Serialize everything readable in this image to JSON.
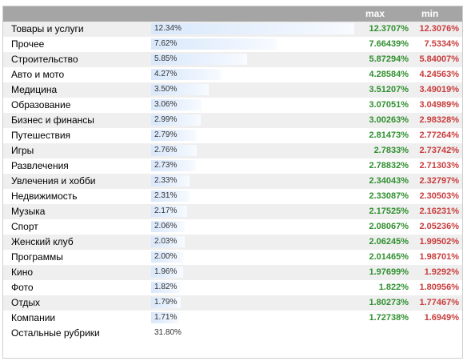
{
  "chart_data": {
    "type": "table",
    "columns": [
      "",
      "",
      "max",
      "min"
    ],
    "bar_max_percent": 12.34,
    "rows": [
      {
        "name": "Товары и услуги",
        "percent": 12.34,
        "percent_label": "12.34%",
        "max": "12.3707%",
        "min": "12.3076%"
      },
      {
        "name": "Прочее",
        "percent": 7.62,
        "percent_label": "7.62%",
        "max": "7.66439%",
        "min": "7.5334%"
      },
      {
        "name": "Строительство",
        "percent": 5.85,
        "percent_label": "5.85%",
        "max": "5.87294%",
        "min": "5.84007%"
      },
      {
        "name": "Авто и мото",
        "percent": 4.27,
        "percent_label": "4.27%",
        "max": "4.28584%",
        "min": "4.24563%"
      },
      {
        "name": "Медицина",
        "percent": 3.5,
        "percent_label": "3.50%",
        "max": "3.51207%",
        "min": "3.49019%"
      },
      {
        "name": "Образование",
        "percent": 3.06,
        "percent_label": "3.06%",
        "max": "3.07051%",
        "min": "3.04989%"
      },
      {
        "name": "Бизнес и финансы",
        "percent": 2.99,
        "percent_label": "2.99%",
        "max": "3.00263%",
        "min": "2.98328%"
      },
      {
        "name": "Путешествия",
        "percent": 2.79,
        "percent_label": "2.79%",
        "max": "2.81473%",
        "min": "2.77264%"
      },
      {
        "name": "Игры",
        "percent": 2.76,
        "percent_label": "2.76%",
        "max": "2.7833%",
        "min": "2.73742%"
      },
      {
        "name": "Развлечения",
        "percent": 2.73,
        "percent_label": "2.73%",
        "max": "2.78832%",
        "min": "2.71303%"
      },
      {
        "name": "Увлечения и хобби",
        "percent": 2.33,
        "percent_label": "2.33%",
        "max": "2.34043%",
        "min": "2.32797%"
      },
      {
        "name": "Недвижимость",
        "percent": 2.31,
        "percent_label": "2.31%",
        "max": "2.33087%",
        "min": "2.30503%"
      },
      {
        "name": "Музыка",
        "percent": 2.17,
        "percent_label": "2.17%",
        "max": "2.17525%",
        "min": "2.16231%"
      },
      {
        "name": "Спорт",
        "percent": 2.06,
        "percent_label": "2.06%",
        "max": "2.08067%",
        "min": "2.05236%"
      },
      {
        "name": "Женский клуб",
        "percent": 2.03,
        "percent_label": "2.03%",
        "max": "2.06245%",
        "min": "1.99502%"
      },
      {
        "name": "Программы",
        "percent": 2.0,
        "percent_label": "2.00%",
        "max": "2.01465%",
        "min": "1.98701%"
      },
      {
        "name": "Кино",
        "percent": 1.96,
        "percent_label": "1.96%",
        "max": "1.97699%",
        "min": "1.9292%"
      },
      {
        "name": "Фото",
        "percent": 1.82,
        "percent_label": "1.82%",
        "max": "1.822%",
        "min": "1.80956%"
      },
      {
        "name": "Отдых",
        "percent": 1.79,
        "percent_label": "1.79%",
        "max": "1.80273%",
        "min": "1.77467%"
      },
      {
        "name": "Компании",
        "percent": 1.71,
        "percent_label": "1.71%",
        "max": "1.72738%",
        "min": "1.6949%"
      }
    ],
    "rest": {
      "name": "Остальные рубрики",
      "percent": 31.8,
      "percent_label": "31.80%"
    }
  },
  "colors": {
    "header_bg": "#a5a5a5",
    "alt_row_bg": "#efefef",
    "bar": "#d9e8fb",
    "max_text": "#2f8f2f",
    "min_text": "#c83c3c"
  }
}
